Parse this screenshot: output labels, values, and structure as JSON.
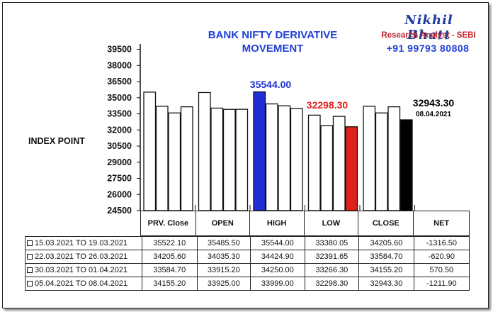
{
  "header": {
    "title_line1": "BANK NIFTY DERIVATIVE",
    "title_line2": "MOVEMENT",
    "brand_name": "Nikhil Bhatt",
    "brand_role": "Research Analyst - SEBI",
    "brand_phone": "+91 99793 80808"
  },
  "chart_data": {
    "type": "bar",
    "title": "BANK NIFTY DERIVATIVE MOVEMENT",
    "ylabel": "INDEX POINT",
    "ylim": [
      24500,
      40000
    ],
    "yticks": [
      "39500",
      "38000",
      "36500",
      "35000",
      "33500",
      "32000",
      "30500",
      "29000",
      "27500",
      "26000",
      "24500"
    ],
    "categories": [
      "PRV. Close",
      "OPEN",
      "HIGH",
      "LOW",
      "CLOSE"
    ],
    "highlight_colors": {
      "HIGH": "#1f2fd6",
      "LOW": "#e0201a",
      "CLOSE": "#000000"
    },
    "series": [
      {
        "values": [
          35522.1,
          35485.5,
          35544.0,
          33380.05,
          34205.6
        ]
      },
      {
        "values": [
          34205.6,
          34035.3,
          34424.9,
          32391.65,
          33584.7
        ]
      },
      {
        "values": [
          33584.7,
          33915.2,
          34250.0,
          33266.3,
          34155.2
        ]
      },
      {
        "values": [
          34155.2,
          33925.0,
          33999.0,
          32298.3,
          32943.3
        ]
      }
    ],
    "annotations": [
      {
        "text": "35544.00",
        "color": "#1f2fd6"
      },
      {
        "text": "32298.30",
        "color": "#e0201a"
      },
      {
        "text": "32943.30",
        "color": "#000000"
      },
      {
        "text": "08.04.2021",
        "color": "#000000"
      }
    ]
  },
  "table": {
    "headers": [
      "PRV. Close",
      "OPEN",
      "HIGH",
      "LOW",
      "CLOSE",
      "NET"
    ],
    "rows": [
      {
        "period": "15.03.2021 TO 19.03.2021",
        "values": [
          "35522.10",
          "35485.50",
          "35544.00",
          "33380.05",
          "34205.60",
          "-1316.50"
        ]
      },
      {
        "period": "22.03.2021 TO 26.03.2021",
        "values": [
          "34205.60",
          "34035.30",
          "34424.90",
          "32391.65",
          "33584.70",
          "-620.90"
        ]
      },
      {
        "period": "30.03.2021 TO 01.04.2021",
        "values": [
          "33584.70",
          "33915.20",
          "34250.00",
          "33266.30",
          "34155.20",
          "570.50"
        ]
      },
      {
        "period": "05.04.2021 TO 08.04.2021",
        "values": [
          "34155.20",
          "33925.00",
          "33999.00",
          "32298.30",
          "32943.30",
          "-1211.90"
        ]
      }
    ]
  }
}
